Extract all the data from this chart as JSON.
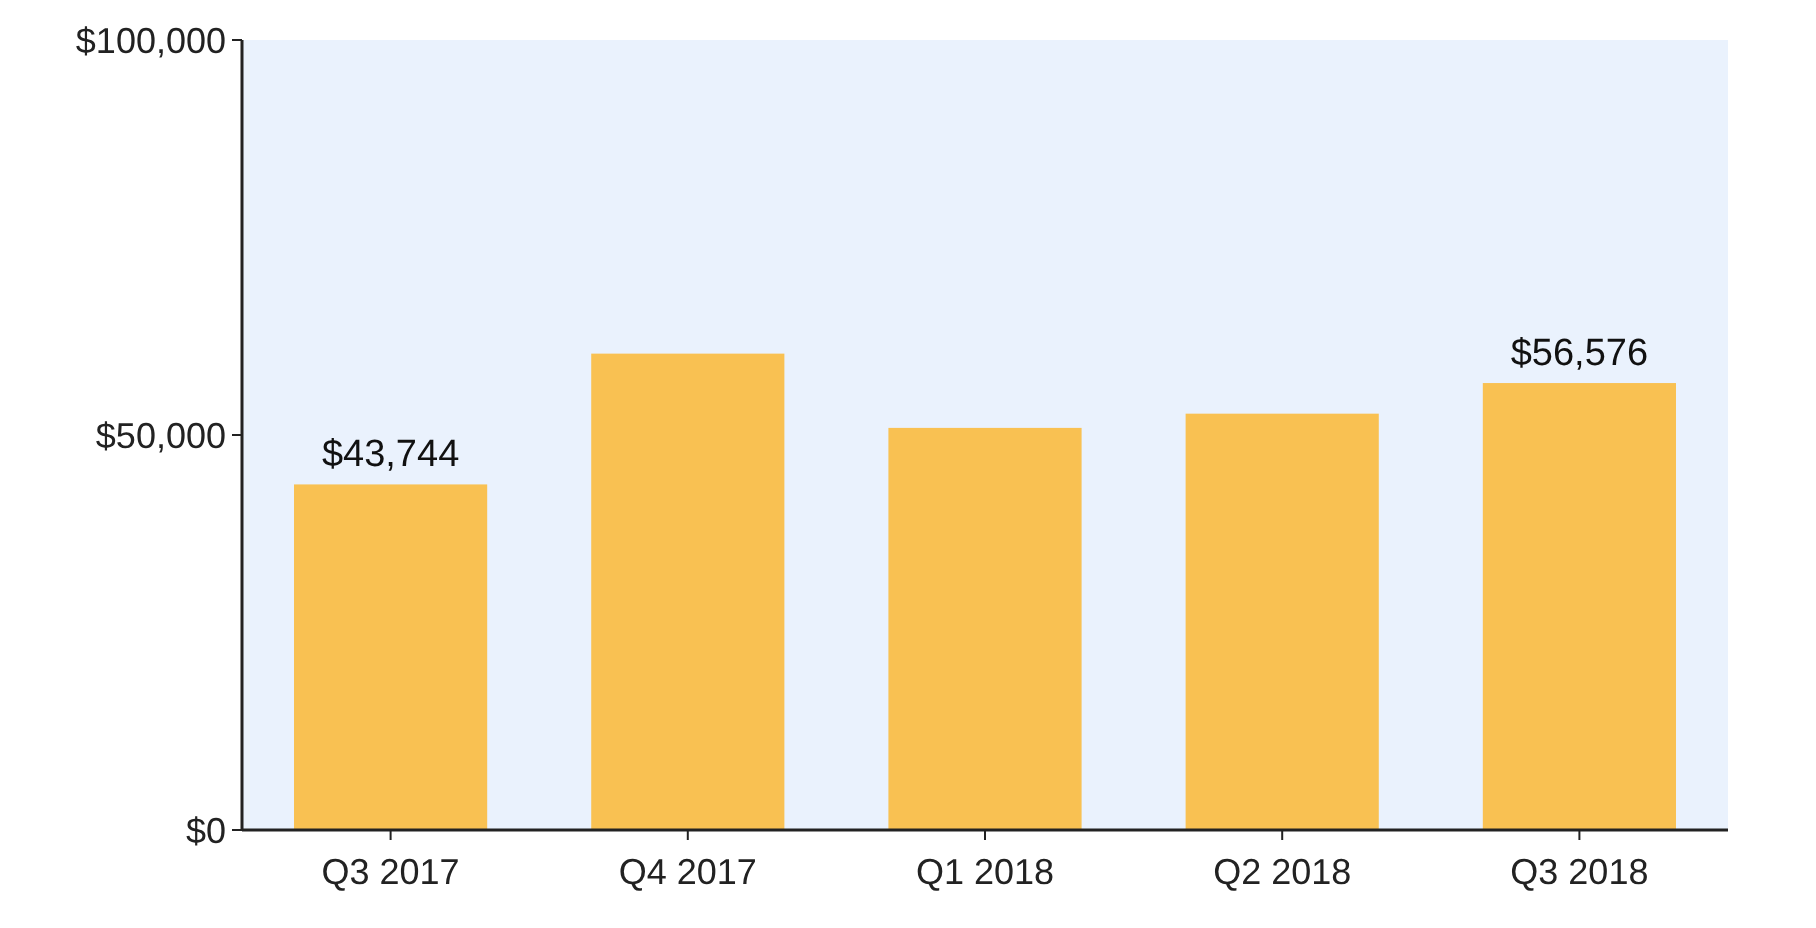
{
  "chart_data": {
    "type": "bar",
    "categories": [
      "Q3 2017",
      "Q4 2017",
      "Q1 2018",
      "Q2 2018",
      "Q3 2018"
    ],
    "values": [
      43744,
      60300,
      50900,
      52700,
      56576
    ],
    "color": "#f9c152",
    "value_labels": [
      "$43,744",
      null,
      null,
      null,
      "$56,576"
    ],
    "ylim": [
      0,
      100000
    ],
    "yticks": [
      {
        "value": 0,
        "label": "$0"
      },
      {
        "value": 50000,
        "label": "$50,000"
      },
      {
        "value": 100000,
        "label": "$100,000"
      }
    ],
    "grid": false
  }
}
